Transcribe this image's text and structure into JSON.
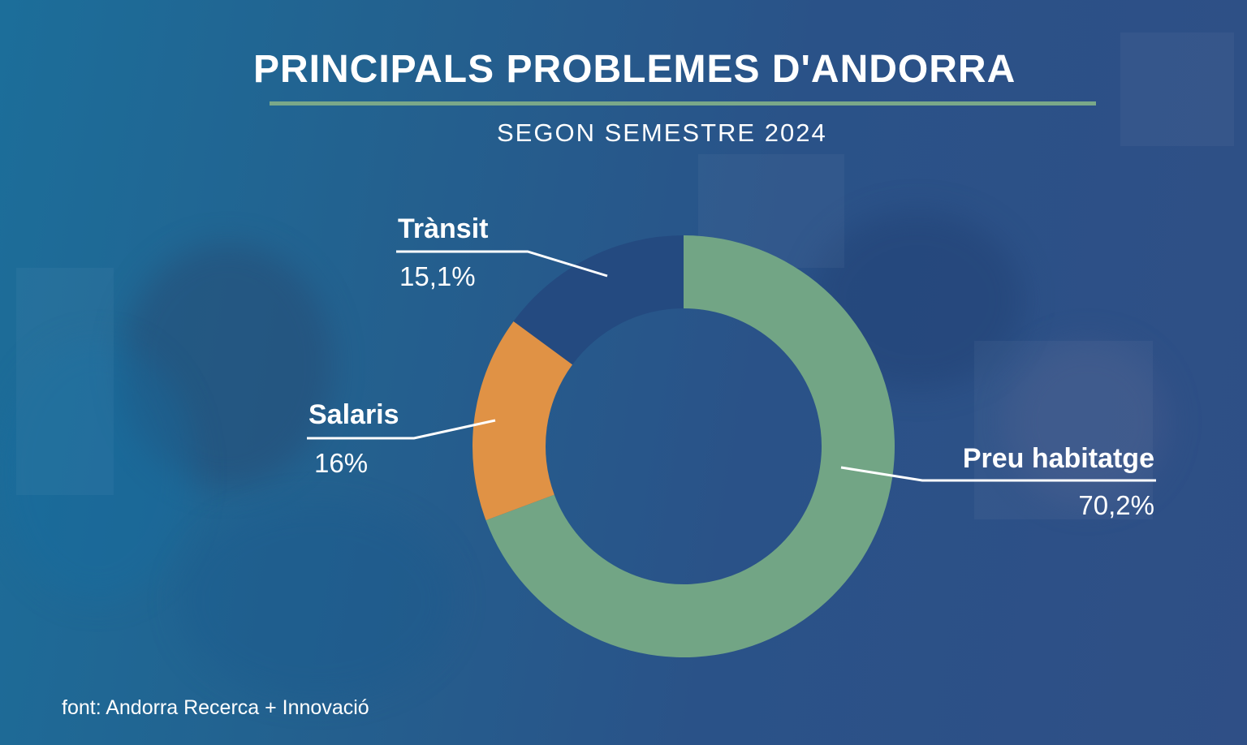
{
  "title": "PRINCIPALS PROBLEMES D'ANDORRA",
  "subtitle": "SEGON SEMESTRE 2024",
  "source": "font: Andorra Recerca + Innovació",
  "chart_data": {
    "type": "pie",
    "donut": true,
    "title": "PRINCIPALS PROBLEMES D'ANDORRA",
    "subtitle": "SEGON SEMESTRE 2024",
    "slices": [
      {
        "name": "Preu habitatge",
        "value": 70.2,
        "label": "70,2%",
        "color": "#72a585"
      },
      {
        "name": "Salaris",
        "value": 16,
        "label": "16%",
        "color": "#e09245"
      },
      {
        "name": "Trànsit",
        "value": 15.1,
        "label": "15,1%",
        "color": "#244a80"
      }
    ]
  }
}
